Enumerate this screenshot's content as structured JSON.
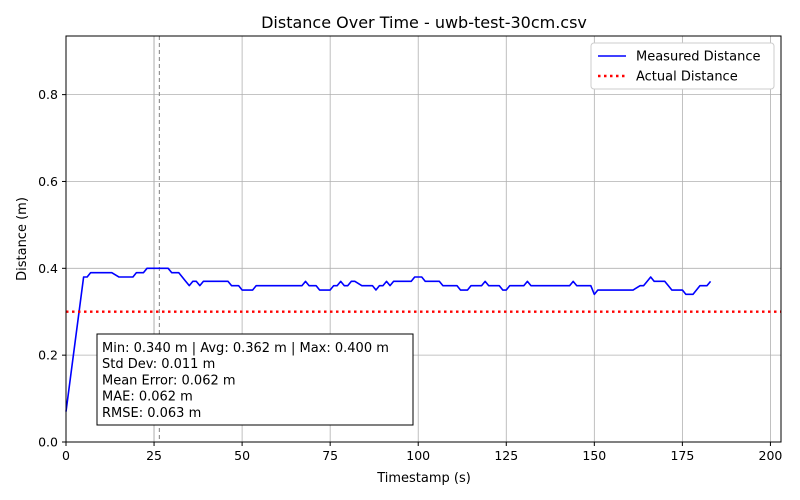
{
  "chart_data": {
    "type": "line",
    "title": "Distance Over Time - uwb-test-30cm.csv",
    "xlabel": "Timestamp (s)",
    "ylabel": "Distance (m)",
    "xlim": [
      0,
      203
    ],
    "ylim": [
      0,
      0.935
    ],
    "xticks": [
      0,
      25,
      50,
      75,
      100,
      125,
      150,
      175,
      200
    ],
    "yticks": [
      0.0,
      0.2,
      0.4,
      0.6,
      0.8
    ],
    "xtick_labels": [
      "0",
      "25",
      "50",
      "75",
      "100",
      "125",
      "150",
      "175",
      "200"
    ],
    "ytick_labels": [
      "0.0",
      "0.2",
      "0.4",
      "0.6",
      "0.8"
    ],
    "grid": true,
    "legend_position": "top-right",
    "vertical_lines": [
      {
        "x": 25,
        "style": "solid",
        "color": "#b0b0b0"
      },
      {
        "x": 26.5,
        "style": "dashed",
        "color": "#808080"
      }
    ],
    "series": [
      {
        "name": "Measured Distance",
        "color": "#0000ff",
        "style": "solid",
        "x": [
          0,
          5,
          6,
          7,
          13,
          15,
          19,
          20,
          22,
          23,
          29,
          30,
          32,
          33,
          34,
          35,
          36,
          37,
          38,
          39,
          40,
          46,
          47,
          49,
          50,
          51,
          53,
          54,
          67,
          68,
          69,
          70,
          71,
          72,
          75,
          76,
          77,
          78,
          79,
          80,
          81,
          82,
          84,
          85,
          87,
          88,
          89,
          90,
          91,
          92,
          93,
          94,
          95,
          98,
          99,
          100,
          101,
          102,
          106,
          107,
          110,
          111,
          112,
          113,
          114,
          115,
          117,
          118,
          119,
          120,
          121,
          123,
          124,
          125,
          126,
          127,
          128,
          130,
          131,
          132,
          133,
          135,
          142,
          143,
          144,
          145,
          149,
          150,
          151,
          160,
          161,
          163,
          164,
          165,
          166,
          167,
          168,
          170,
          171,
          172,
          173,
          175,
          176,
          177,
          178,
          180,
          181,
          182,
          183
        ],
        "y": [
          0.07,
          0.38,
          0.38,
          0.39,
          0.39,
          0.38,
          0.38,
          0.39,
          0.39,
          0.4,
          0.4,
          0.39,
          0.39,
          0.38,
          0.37,
          0.36,
          0.37,
          0.37,
          0.36,
          0.37,
          0.37,
          0.37,
          0.36,
          0.36,
          0.35,
          0.35,
          0.35,
          0.36,
          0.36,
          0.37,
          0.36,
          0.36,
          0.36,
          0.35,
          0.35,
          0.36,
          0.36,
          0.37,
          0.36,
          0.36,
          0.37,
          0.37,
          0.36,
          0.36,
          0.36,
          0.35,
          0.36,
          0.36,
          0.37,
          0.36,
          0.37,
          0.37,
          0.37,
          0.37,
          0.38,
          0.38,
          0.38,
          0.37,
          0.37,
          0.36,
          0.36,
          0.36,
          0.35,
          0.35,
          0.35,
          0.36,
          0.36,
          0.36,
          0.37,
          0.36,
          0.36,
          0.36,
          0.35,
          0.35,
          0.36,
          0.36,
          0.36,
          0.36,
          0.37,
          0.36,
          0.36,
          0.36,
          0.36,
          0.36,
          0.37,
          0.36,
          0.36,
          0.34,
          0.35,
          0.35,
          0.35,
          0.36,
          0.36,
          0.37,
          0.38,
          0.37,
          0.37,
          0.37,
          0.36,
          0.35,
          0.35,
          0.35,
          0.34,
          0.34,
          0.34,
          0.36,
          0.36,
          0.36,
          0.37
        ]
      },
      {
        "name": "Actual Distance",
        "color": "#ff0000",
        "style": "dotted",
        "x": [
          0,
          203
        ],
        "y": [
          0.3,
          0.3
        ]
      }
    ],
    "annotations": [
      "Min: 0.340 m | Avg: 0.362 m | Max: 0.400 m",
      "Std Dev: 0.011 m",
      "Mean Error: 0.062 m",
      "MAE: 0.062 m",
      "RMSE: 0.063 m"
    ]
  }
}
